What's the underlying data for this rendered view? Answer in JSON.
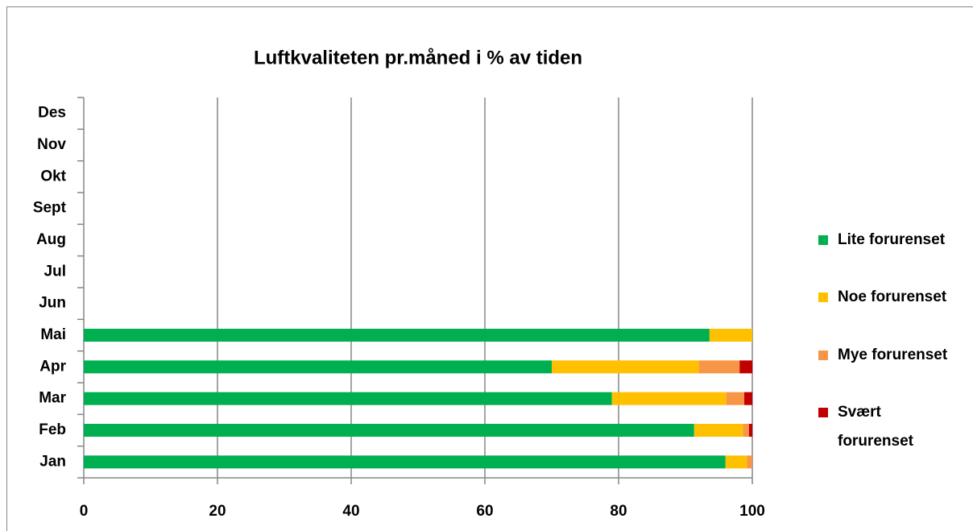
{
  "chart_data": {
    "type": "bar",
    "orientation": "horizontal",
    "stacked": true,
    "title": "Luftkvaliteten pr.måned i % av tiden",
    "categories": [
      "Jan",
      "Feb",
      "Mar",
      "Apr",
      "Mai",
      "Jun",
      "Jul",
      "Aug",
      "Sept",
      "Okt",
      "Nov",
      "Des"
    ],
    "series": [
      {
        "name": "Lite forurenset",
        "color": "#00b050",
        "values": [
          96.0,
          91.3,
          79.0,
          70.0,
          93.6,
          null,
          null,
          null,
          null,
          null,
          null,
          null
        ]
      },
      {
        "name": "Noe forurenset",
        "color": "#ffc000",
        "values": [
          3.2,
          7.3,
          17.1,
          22.0,
          6.4,
          null,
          null,
          null,
          null,
          null,
          null,
          null
        ]
      },
      {
        "name": "Mye forurenset",
        "color": "#f79646",
        "values": [
          0.8,
          0.9,
          2.7,
          6.1,
          0,
          null,
          null,
          null,
          null,
          null,
          null,
          null
        ]
      },
      {
        "name": "Svært forurenset",
        "color": "#c00000",
        "values": [
          0,
          0.5,
          1.2,
          1.9,
          0,
          null,
          null,
          null,
          null,
          null,
          null,
          null
        ]
      }
    ],
    "xlim": [
      0,
      100
    ],
    "xticks": [
      0,
      20,
      40,
      60,
      80,
      100
    ],
    "grid": true,
    "legend": "right"
  }
}
